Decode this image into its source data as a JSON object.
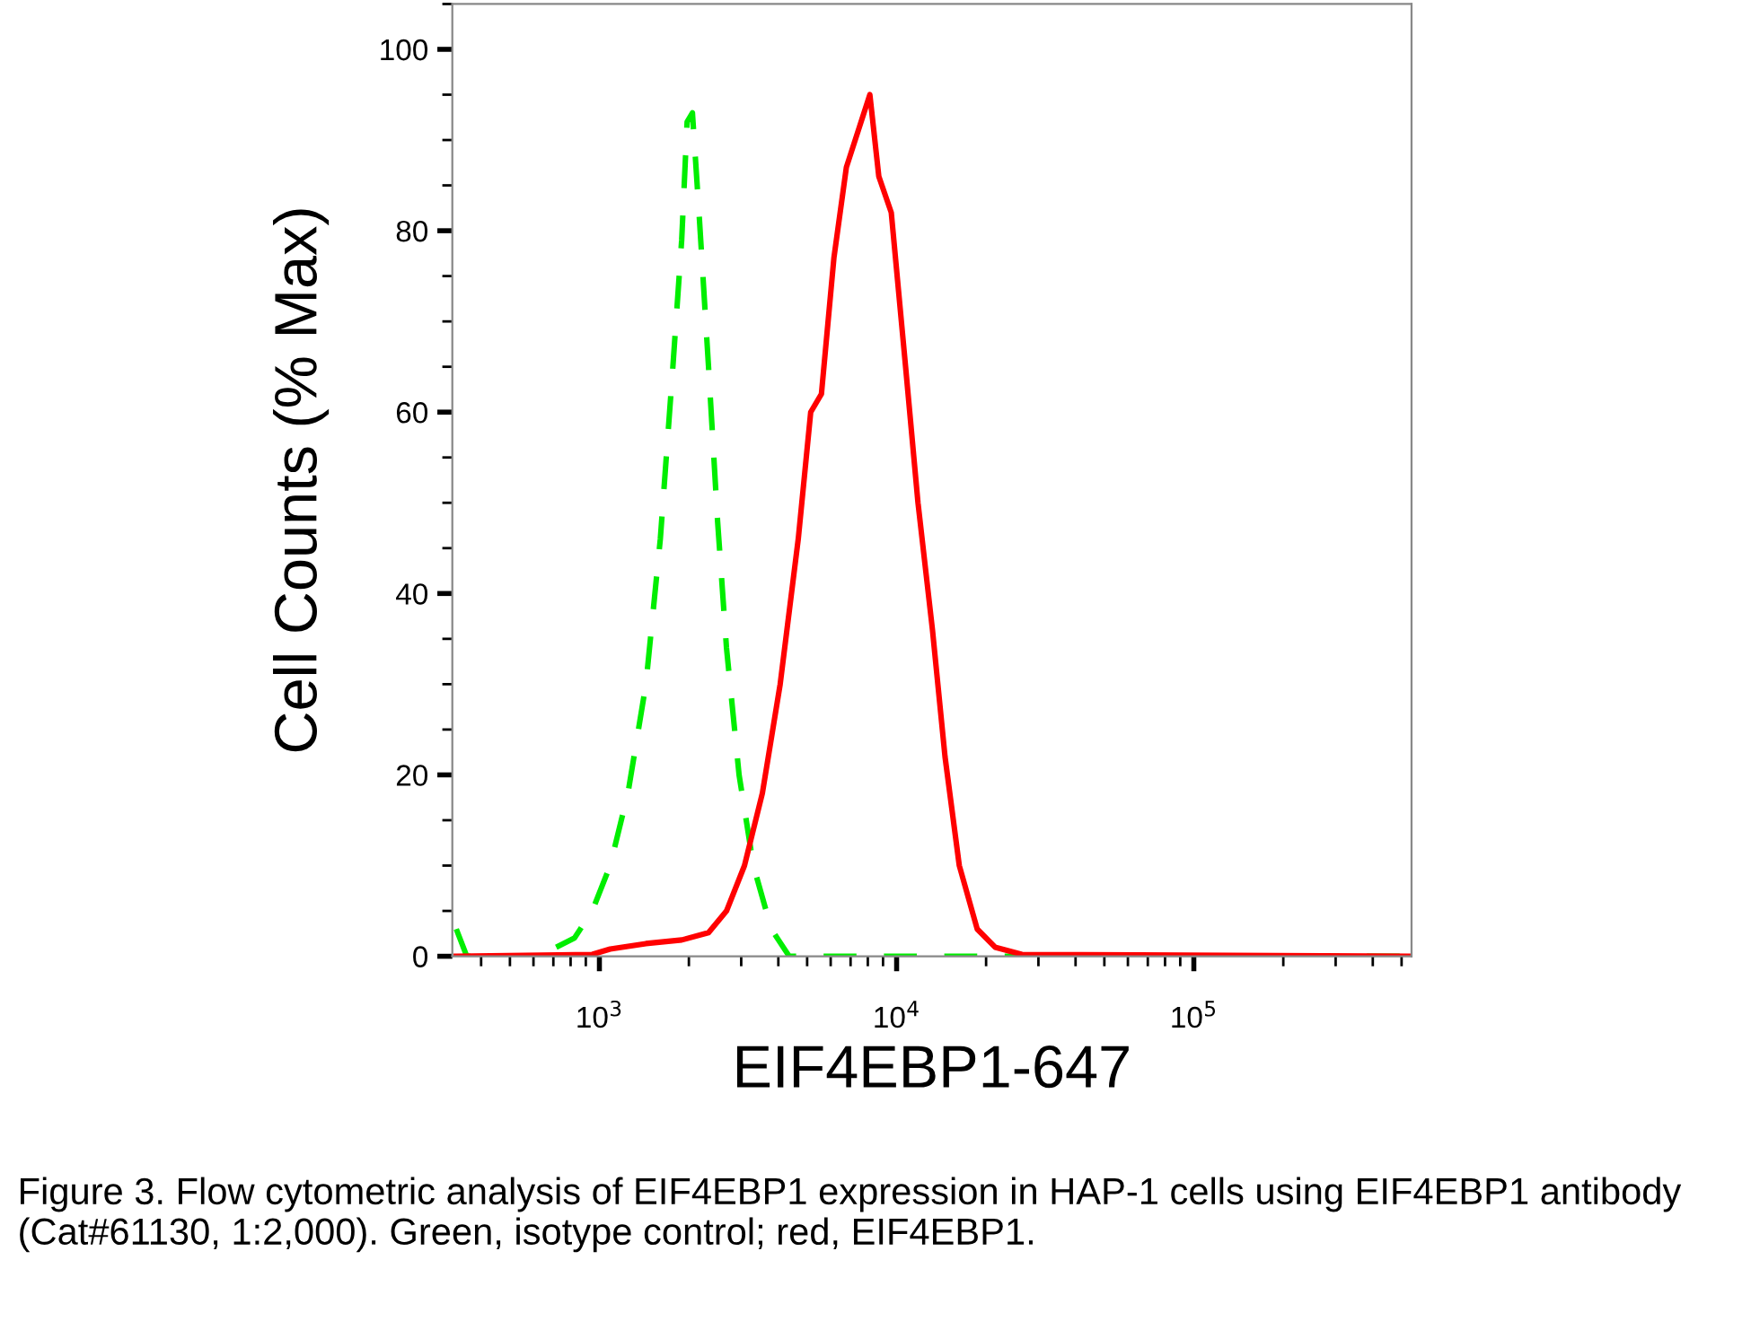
{
  "chart_data": {
    "type": "line",
    "xlabel": "EIF4EBP1-647",
    "ylabel": "Cell Counts (% Max)",
    "log": "x",
    "xlim": [
      320,
      540000
    ],
    "ylim": [
      0,
      105
    ],
    "xticks": [
      {
        "value": 1000,
        "label": "10$^{3}$"
      },
      {
        "value": 10000,
        "label": "10$^{4}$"
      },
      {
        "value": 100000,
        "label": "10$^{5}$"
      }
    ],
    "yticks": [
      0,
      20,
      40,
      60,
      80,
      100
    ],
    "grid": false,
    "legend": false,
    "series": [
      {
        "color": "#00ee00",
        "line_style": "dashed",
        "x": [
          330,
          358,
          624,
          824,
          946,
          1087,
          1248,
          1434,
          1603,
          1767,
          1892,
          1973,
          2056,
          2173,
          2329,
          2498,
          2677,
          2951,
          3297,
          3788,
          4353,
          528000
        ],
        "values": [
          3,
          0,
          0,
          2,
          5,
          10,
          18,
          30,
          46,
          65,
          79,
          92,
          93,
          81,
          65,
          48,
          34,
          20,
          10,
          3,
          0,
          0
        ]
      },
      {
        "color": "#ff0000",
        "line_style": "solid",
        "x": [
          330,
          946,
          1087,
          1434,
          1892,
          2329,
          2677,
          3077,
          3535,
          4057,
          4667,
          5140,
          5585,
          6152,
          6776,
          8128,
          8710,
          9594,
          10720,
          11800,
          13200,
          14550,
          16250,
          18670,
          21440,
          26400,
          528000
        ],
        "values": [
          0,
          0.2,
          0.8,
          1.4,
          1.8,
          2.6,
          5,
          10,
          18,
          30,
          46,
          60,
          62,
          77,
          87,
          95,
          86,
          82,
          65,
          50,
          36,
          22,
          10,
          3,
          1,
          0.2,
          0
        ]
      }
    ],
    "annotations": [
      "Figure 3. Flow cytometric analysis of EIF4EBP1 expression in HAP-1 cells using EIF4EBP1 antibody (Cat#61130, 1:2,000). Green, isotype control; red, EIF4EBP1."
    ]
  }
}
